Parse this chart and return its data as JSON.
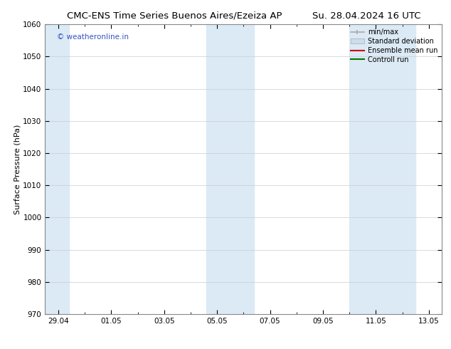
{
  "title_left": "CMC-ENS Time Series Buenos Aires/Ezeiza AP",
  "title_right": "Su. 28.04.2024 16 UTC",
  "ylabel": "Surface Pressure (hPa)",
  "ylim": [
    970,
    1060
  ],
  "yticks": [
    970,
    980,
    990,
    1000,
    1010,
    1020,
    1030,
    1040,
    1050,
    1060
  ],
  "xtick_labels": [
    "29.04",
    "01.05",
    "03.05",
    "05.05",
    "07.05",
    "09.05",
    "11.05",
    "13.05"
  ],
  "xtick_positions": [
    0,
    2,
    4,
    6,
    8,
    10,
    12,
    14
  ],
  "xlim": [
    -0.5,
    14.5
  ],
  "shaded_bands": [
    {
      "x_start": 5.6,
      "x_end": 7.4
    },
    {
      "x_start": 11.0,
      "x_end": 13.5
    }
  ],
  "left_band": {
    "x_start": -0.5,
    "x_end": 0.4
  },
  "shade_color": "#dbeaf5",
  "watermark_text": "© weatheronline.in",
  "watermark_color": "#3355bb",
  "legend_entries": [
    {
      "label": "min/max",
      "color": "#aaaaaa",
      "lw": 1.2
    },
    {
      "label": "Standard deviation",
      "color": "#ccddee",
      "lw": 5
    },
    {
      "label": "Ensemble mean run",
      "color": "#cc0000",
      "lw": 1.5
    },
    {
      "label": "Controll run",
      "color": "#007700",
      "lw": 1.5
    }
  ],
  "bg_color": "#ffffff",
  "grid_color": "#cccccc",
  "title_fontsize": 9.5,
  "axis_fontsize": 8,
  "tick_fontsize": 7.5
}
